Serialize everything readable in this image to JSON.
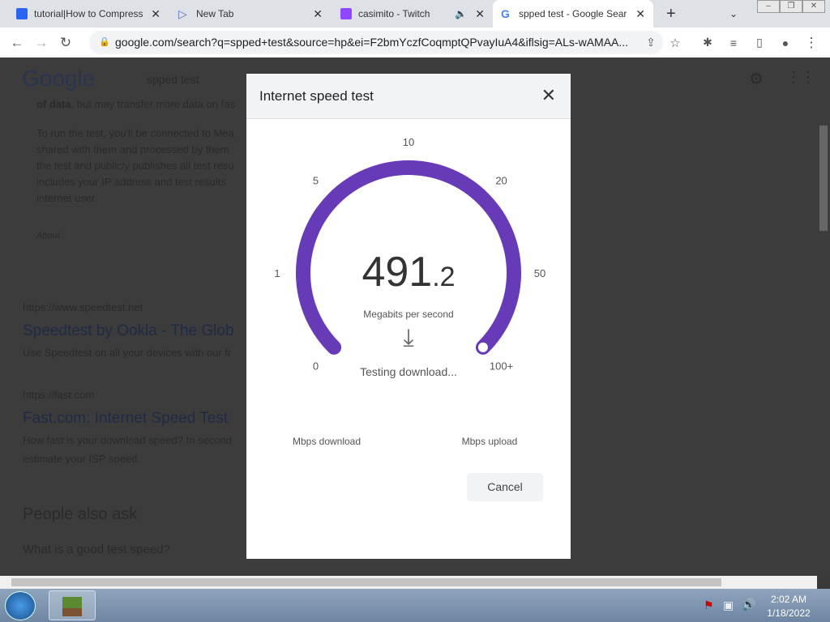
{
  "browser": {
    "tabs": [
      {
        "title": "tutorial|How to Compress",
        "icon": "css3-icon",
        "color": "#2965f1"
      },
      {
        "title": "New Tab",
        "icon": "play-icon",
        "color": "#5f6fbf"
      },
      {
        "title": "casimito - Twitch",
        "icon": "twitch-icon",
        "color": "#9146ff"
      },
      {
        "title": "spped test - Google Sear",
        "icon": "google-icon",
        "color": "#4285f4"
      }
    ],
    "url": "google.com/search?q=spped+test&source=hp&ei=F2bmYczfCoqmptQPvayIuA4&iflsig=ALs-wAMAA..."
  },
  "page": {
    "logo": "Google",
    "query": "spped test",
    "snippet_bold": "of data",
    "snippet_tail": ", but may transfer more data on fas",
    "para": [
      "To run the test, you'll be connected to Mea",
      "shared with them and processed by them",
      "the test and publicly publishes all test resu",
      "includes your IP address and test results",
      "internet user."
    ],
    "about": "About",
    "results": [
      {
        "url": "https://www.speedtest.net",
        "title": "Speedtest by Ookla - The Glob",
        "desc": "Use Speedtest on all your devices with our fr"
      },
      {
        "url": "https://fast.com",
        "title": "Fast.com: Internet Speed Test",
        "desc": "How fast is your download speed? In second",
        "desc2": "estimate your ISP speed."
      }
    ],
    "paa": "People also ask",
    "question": "What is a good test speed?"
  },
  "dialog": {
    "title": "Internet speed test",
    "gauge": {
      "ticks": [
        "0",
        "1",
        "5",
        "10",
        "20",
        "50",
        "100+"
      ],
      "value": "491",
      "decimal": ".2",
      "unit": "Megabits per second",
      "status": "Testing download...",
      "fill_fraction": 1.0,
      "color": "#673ab7"
    },
    "download_label": "Mbps download",
    "upload_label": "Mbps upload",
    "cancel": "Cancel"
  },
  "taskbar": {
    "time": "2:02 AM",
    "date": "1/18/2022"
  }
}
